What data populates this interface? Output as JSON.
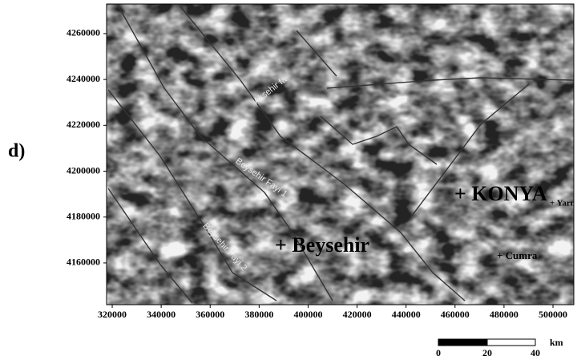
{
  "panel_label": "d)",
  "map": {
    "xlim": [
      317700,
      508500
    ],
    "ylim": [
      4141800,
      4272900
    ],
    "xticks": [
      320000,
      340000,
      360000,
      380000,
      400000,
      420000,
      440000,
      460000,
      480000,
      500000
    ],
    "yticks": [
      4160000,
      4180000,
      4200000,
      4220000,
      4240000,
      4260000
    ],
    "places": [
      "+ Beysehir",
      "+ KONYA",
      "+ Yarma",
      "+ Cumra"
    ],
    "fault_labels": [
      "Aksehir fa",
      "Beysehir Fayi 1",
      "Beysehir Fayi 2"
    ]
  },
  "scale_bar": {
    "labels": [
      "0",
      "20",
      "40"
    ],
    "unit": "km"
  }
}
